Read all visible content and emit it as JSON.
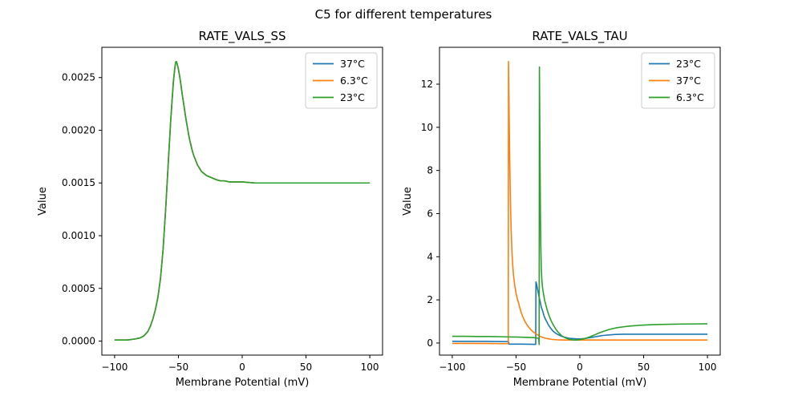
{
  "suptitle": "C5 for different temperatures",
  "palette": {
    "blue": "#1f77b4",
    "orange": "#ff7f0e",
    "green": "#2ca02c",
    "legend_edge": "#cccccc",
    "spine": "#000000"
  },
  "chart_data": [
    {
      "type": "line",
      "title": "RATE_VALS_SS",
      "xlabel": "Membrane Potential (mV)",
      "ylabel": "Value",
      "xlim": [
        -110,
        110
      ],
      "ylim": [
        -0.000133,
        0.002787
      ],
      "grid": false,
      "legend_position": "upper right",
      "xticks": {
        "values": [
          -100,
          -50,
          0,
          50,
          100
        ],
        "labels": [
          "−100",
          "−50",
          "0",
          "50",
          "100"
        ]
      },
      "yticks": {
        "values": [
          0.0,
          0.0005,
          0.001,
          0.0015,
          0.002,
          0.0025
        ],
        "labels": [
          "0.0000",
          "0.0005",
          "0.0010",
          "0.0015",
          "0.0020",
          "0.0025"
        ]
      },
      "shared_points": [
        [
          -100,
          1e-05
        ],
        [
          -90,
          1e-05
        ],
        [
          -84,
          2e-05
        ],
        [
          -80,
          3e-05
        ],
        [
          -77,
          5e-05
        ],
        [
          -74,
          9e-05
        ],
        [
          -72,
          0.00014
        ],
        [
          -70,
          0.00021
        ],
        [
          -68,
          0.0003
        ],
        [
          -66,
          0.00042
        ],
        [
          -64,
          0.0006
        ],
        [
          -62,
          0.00087
        ],
        [
          -60,
          0.00125
        ],
        [
          -58,
          0.00168
        ],
        [
          -56,
          0.0021
        ],
        [
          -54,
          0.00245
        ],
        [
          -53,
          0.00257
        ],
        [
          -52.5,
          0.00262
        ],
        [
          -52,
          0.00265
        ],
        [
          -51.5,
          0.00265
        ],
        [
          -51,
          0.00263
        ],
        [
          -50,
          0.00258
        ],
        [
          -49,
          0.00251
        ],
        [
          -48,
          0.00243
        ],
        [
          -47,
          0.00234
        ],
        [
          -46,
          0.00226
        ],
        [
          -45,
          0.00218
        ],
        [
          -44,
          0.0021
        ],
        [
          -43,
          0.00203
        ],
        [
          -42,
          0.00196
        ],
        [
          -41,
          0.0019
        ],
        [
          -40,
          0.00185
        ],
        [
          -39,
          0.0018
        ],
        [
          -38,
          0.00176
        ],
        [
          -37,
          0.00173
        ],
        [
          -36,
          0.0017
        ],
        [
          -35,
          0.00167
        ],
        [
          -34,
          0.00165
        ],
        [
          -33,
          0.00163
        ],
        [
          -32,
          0.00161
        ],
        [
          -31,
          0.0016
        ],
        [
          -30,
          0.00159
        ],
        [
          -28,
          0.00157
        ],
        [
          -26,
          0.00156
        ],
        [
          -24,
          0.00155
        ],
        [
          -22,
          0.00154
        ],
        [
          -20,
          0.00153
        ],
        [
          -17,
          0.00152
        ],
        [
          -14,
          0.00152
        ],
        [
          -10,
          0.00151
        ],
        [
          -5,
          0.00151
        ],
        [
          0,
          0.00151
        ],
        [
          10,
          0.0015
        ],
        [
          25,
          0.0015
        ],
        [
          50,
          0.0015
        ],
        [
          75,
          0.0015
        ],
        [
          100,
          0.0015
        ]
      ],
      "series": [
        {
          "name": "37°C",
          "color": "#1f77b4"
        },
        {
          "name": "6.3°C",
          "color": "#ff7f0e"
        },
        {
          "name": "23°C",
          "color": "#2ca02c"
        }
      ]
    },
    {
      "type": "line",
      "title": "RATE_VALS_TAU",
      "xlabel": "Membrane Potential (mV)",
      "ylabel": "Value",
      "xlim": [
        -110,
        110
      ],
      "ylim": [
        -0.56,
        13.71
      ],
      "grid": false,
      "legend_position": "upper right",
      "xticks": {
        "values": [
          -100,
          -50,
          0,
          50,
          100
        ],
        "labels": [
          "−100",
          "−50",
          "0",
          "50",
          "100"
        ]
      },
      "yticks": {
        "values": [
          0,
          2,
          4,
          6,
          8,
          10,
          12
        ],
        "labels": [
          "0",
          "2",
          "4",
          "6",
          "8",
          "10",
          "12"
        ]
      },
      "series": [
        {
          "name": "23°C",
          "color": "#1f77b4",
          "points": [
            [
              -100,
              0.08
            ],
            [
              -85,
              0.08
            ],
            [
              -75,
              0.08
            ],
            [
              -65,
              0.07
            ],
            [
              -58,
              0.065
            ],
            [
              -55.8,
              0.06
            ],
            [
              -55.6,
              -0.05
            ],
            [
              -50,
              -0.05
            ],
            [
              -45,
              -0.05
            ],
            [
              -40,
              -0.055
            ],
            [
              -36,
              -0.06
            ],
            [
              -34.6,
              -0.06
            ],
            [
              -34.4,
              2.83
            ],
            [
              -34,
              2.75
            ],
            [
              -33,
              2.45
            ],
            [
              -32,
              2.15
            ],
            [
              -31,
              1.9
            ],
            [
              -30.2,
              1.66
            ],
            [
              -29,
              1.45
            ],
            [
              -28,
              1.25
            ],
            [
              -27,
              1.1
            ],
            [
              -26,
              1.0
            ],
            [
              -25,
              0.88
            ],
            [
              -24,
              0.78
            ],
            [
              -23,
              0.7
            ],
            [
              -22,
              0.62
            ],
            [
              -21,
              0.55
            ],
            [
              -20,
              0.5
            ],
            [
              -19,
              0.46
            ],
            [
              -18,
              0.42
            ],
            [
              -17,
              0.39
            ],
            [
              -16,
              0.36
            ],
            [
              -15,
              0.33
            ],
            [
              -14,
              0.31
            ],
            [
              -13,
              0.29
            ],
            [
              -12,
              0.27
            ],
            [
              -11,
              0.26
            ],
            [
              -10,
              0.24
            ],
            [
              -9,
              0.23
            ],
            [
              -8,
              0.22
            ],
            [
              -6,
              0.21
            ],
            [
              -4,
              0.2
            ],
            [
              -2,
              0.19
            ],
            [
              0,
              0.19
            ],
            [
              2,
              0.2
            ],
            [
              4,
              0.21
            ],
            [
              6,
              0.23
            ],
            [
              8,
              0.25
            ],
            [
              10,
              0.27
            ],
            [
              12,
              0.29
            ],
            [
              14,
              0.31
            ],
            [
              16,
              0.33
            ],
            [
              18,
              0.35
            ],
            [
              20,
              0.36
            ],
            [
              22,
              0.37
            ],
            [
              24,
              0.38
            ],
            [
              26,
              0.39
            ],
            [
              28,
              0.4
            ],
            [
              31,
              0.405
            ],
            [
              34,
              0.41
            ],
            [
              40,
              0.41
            ],
            [
              50,
              0.41
            ],
            [
              60,
              0.41
            ],
            [
              80,
              0.41
            ],
            [
              100,
              0.41
            ]
          ]
        },
        {
          "name": "37°C",
          "color": "#ff7f0e",
          "points": [
            [
              -100,
              -0.02
            ],
            [
              -90,
              -0.02
            ],
            [
              -80,
              -0.02
            ],
            [
              -70,
              -0.025
            ],
            [
              -62,
              -0.03
            ],
            [
              -56.1,
              -0.03
            ],
            [
              -55.9,
              13.05
            ],
            [
              -55.5,
              11.0
            ],
            [
              -55.1,
              9.0
            ],
            [
              -54.7,
              7.5
            ],
            [
              -54.3,
              6.3
            ],
            [
              -53.8,
              5.2
            ],
            [
              -53.2,
              4.2
            ],
            [
              -52.6,
              3.6
            ],
            [
              -52,
              3.15
            ],
            [
              -51.1,
              2.7
            ],
            [
              -50,
              2.3
            ],
            [
              -49,
              2.05
            ],
            [
              -48,
              1.85
            ],
            [
              -47,
              1.62
            ],
            [
              -46,
              1.42
            ],
            [
              -45,
              1.26
            ],
            [
              -44,
              1.12
            ],
            [
              -43,
              1.0
            ],
            [
              -42,
              0.9
            ],
            [
              -41,
              0.81
            ],
            [
              -40,
              0.73
            ],
            [
              -39,
              0.66
            ],
            [
              -38,
              0.6
            ],
            [
              -37,
              0.54
            ],
            [
              -36,
              0.49
            ],
            [
              -35,
              0.45
            ],
            [
              -34,
              0.41
            ],
            [
              -33,
              0.37
            ],
            [
              -32,
              0.34
            ],
            [
              -31,
              0.31
            ],
            [
              -30,
              0.28
            ],
            [
              -29,
              0.26
            ],
            [
              -28,
              0.24
            ],
            [
              -26,
              0.21
            ],
            [
              -24,
              0.19
            ],
            [
              -22,
              0.17
            ],
            [
              -20,
              0.16
            ],
            [
              -18,
              0.15
            ],
            [
              -15,
              0.145
            ],
            [
              -12,
              0.14
            ],
            [
              -8,
              0.14
            ],
            [
              0,
              0.14
            ],
            [
              20,
              0.14
            ],
            [
              50,
              0.14
            ],
            [
              100,
              0.14
            ]
          ]
        },
        {
          "name": "6.3°C",
          "color": "#2ca02c",
          "points": [
            [
              -100,
              0.31
            ],
            [
              -90,
              0.31
            ],
            [
              -80,
              0.3
            ],
            [
              -70,
              0.3
            ],
            [
              -60,
              0.29
            ],
            [
              -54,
              0.28
            ],
            [
              -50,
              0.28
            ],
            [
              -45,
              0.27
            ],
            [
              -40,
              0.26
            ],
            [
              -36,
              0.25
            ],
            [
              -33.5,
              0.23
            ],
            [
              -32.2,
              0.21
            ],
            [
              -31.9,
              -0.07
            ],
            [
              -31.7,
              12.8
            ],
            [
              -31.2,
              8.5
            ],
            [
              -30.9,
              6.0
            ],
            [
              -30.6,
              4.5
            ],
            [
              -30.2,
              3.4
            ],
            [
              -29.8,
              2.95
            ],
            [
              -29.3,
              2.6
            ],
            [
              -28.7,
              2.35
            ],
            [
              -28.1,
              2.15
            ],
            [
              -27.5,
              1.95
            ],
            [
              -27,
              1.85
            ],
            [
              -26,
              1.62
            ],
            [
              -25,
              1.42
            ],
            [
              -24,
              1.25
            ],
            [
              -23,
              1.1
            ],
            [
              -22,
              0.97
            ],
            [
              -21,
              0.86
            ],
            [
              -20,
              0.76
            ],
            [
              -19,
              0.66
            ],
            [
              -18,
              0.58
            ],
            [
              -17,
              0.5
            ],
            [
              -16,
              0.44
            ],
            [
              -15,
              0.38
            ],
            [
              -14,
              0.33
            ],
            [
              -13,
              0.29
            ],
            [
              -12,
              0.26
            ],
            [
              -11,
              0.23
            ],
            [
              -10,
              0.21
            ],
            [
              -9,
              0.19
            ],
            [
              -8,
              0.17
            ],
            [
              -7,
              0.16
            ],
            [
              -6,
              0.15
            ],
            [
              -5,
              0.145
            ],
            [
              -4,
              0.14
            ],
            [
              -3,
              0.14
            ],
            [
              -2,
              0.145
            ],
            [
              -1,
              0.15
            ],
            [
              0,
              0.16
            ],
            [
              2,
              0.18
            ],
            [
              4,
              0.21
            ],
            [
              6,
              0.25
            ],
            [
              8,
              0.29
            ],
            [
              10,
              0.34
            ],
            [
              12,
              0.39
            ],
            [
              14,
              0.44
            ],
            [
              16,
              0.49
            ],
            [
              18,
              0.53
            ],
            [
              20,
              0.57
            ],
            [
              23,
              0.63
            ],
            [
              26,
              0.67
            ],
            [
              30,
              0.72
            ],
            [
              34,
              0.75
            ],
            [
              38,
              0.78
            ],
            [
              42,
              0.8
            ],
            [
              46,
              0.82
            ],
            [
              50,
              0.83
            ],
            [
              56,
              0.85
            ],
            [
              62,
              0.86
            ],
            [
              70,
              0.87
            ],
            [
              80,
              0.88
            ],
            [
              90,
              0.885
            ],
            [
              100,
              0.89
            ]
          ]
        }
      ]
    }
  ]
}
